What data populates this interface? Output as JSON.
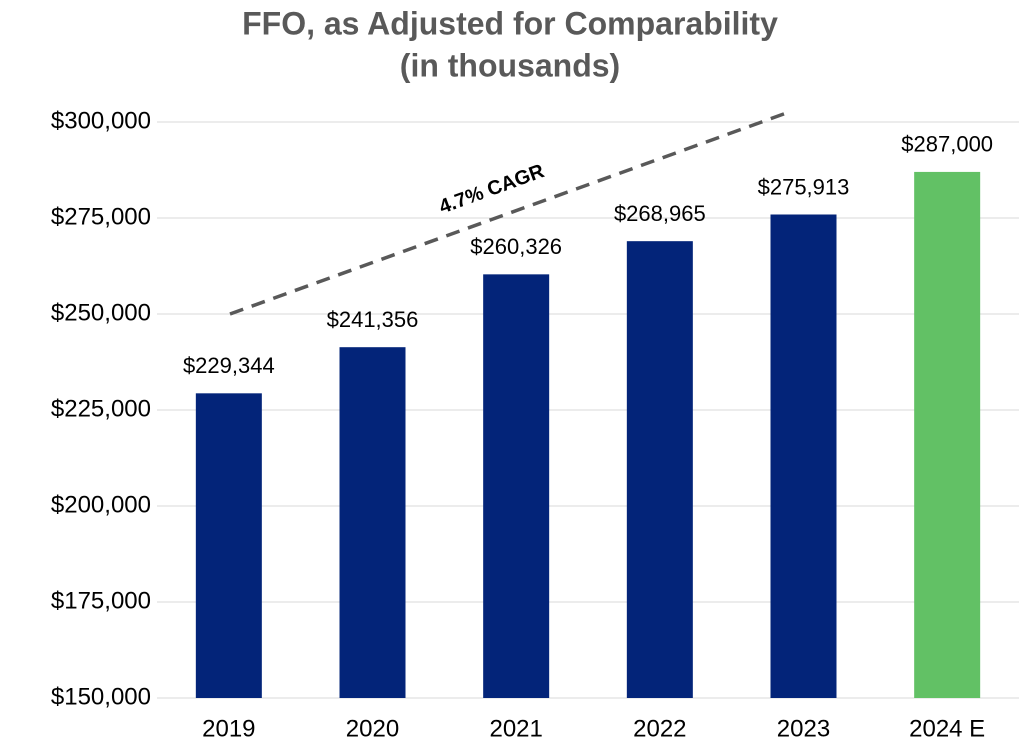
{
  "chart_data": {
    "type": "bar",
    "title": "FFO, as Adjusted for Comparability",
    "subtitle": "(in thousands)",
    "categories": [
      "2019",
      "2020",
      "2021",
      "2022",
      "2023",
      "2024 E"
    ],
    "values": [
      229344,
      241356,
      260326,
      268965,
      275913,
      287000
    ],
    "value_labels": [
      "$229,344",
      "$241,356",
      "$260,326",
      "$268,965",
      "$275,913",
      "$287,000"
    ],
    "colors": [
      "#032479",
      "#032479",
      "#032479",
      "#032479",
      "#032479",
      "#62c165"
    ],
    "ylim": [
      150000,
      300000
    ],
    "yticks": [
      {
        "value": 150000,
        "label": "$150,000"
      },
      {
        "value": 175000,
        "label": "$175,000"
      },
      {
        "value": 200000,
        "label": "$200,000"
      },
      {
        "value": 225000,
        "label": "$225,000"
      },
      {
        "value": 250000,
        "label": "$250,000"
      },
      {
        "value": 275000,
        "label": "$275,000"
      },
      {
        "value": 300000,
        "label": "$300,000"
      }
    ],
    "grid": true,
    "annotations": [
      "4.7% CAGR"
    ]
  }
}
